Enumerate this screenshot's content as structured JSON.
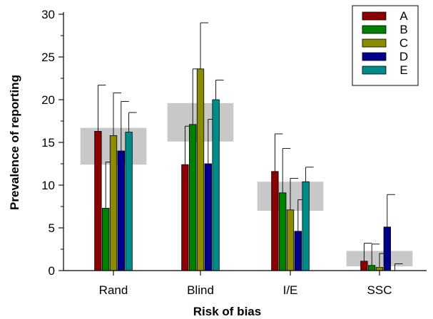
{
  "chart_data": {
    "type": "bar",
    "xlabel": "Risk of bias",
    "ylabel": "Prevalence of reporting",
    "categories": [
      "Rand",
      "Blind",
      "I/E",
      "SSC"
    ],
    "ylim": [
      0,
      30
    ],
    "yticks": [
      0,
      5,
      10,
      15,
      20,
      25,
      30
    ],
    "legend_position": "top-right",
    "series": [
      {
        "name": "A",
        "color": "#8b0000",
        "values": [
          16.3,
          12.4,
          11.6,
          1.1
        ],
        "errors": [
          5.4,
          4.5,
          4.4,
          2.1
        ]
      },
      {
        "name": "B",
        "color": "#008000",
        "values": [
          7.3,
          17.1,
          9.1,
          0.6
        ],
        "errors": [
          5.4,
          6.5,
          5.2,
          2.5
        ]
      },
      {
        "name": "C",
        "color": "#8b8b00",
        "values": [
          15.8,
          23.6,
          7.1,
          0.4
        ],
        "errors": [
          5.0,
          5.4,
          3.7,
          1.6
        ]
      },
      {
        "name": "D",
        "color": "#00008b",
        "values": [
          14.0,
          12.5,
          4.6,
          5.1
        ],
        "errors": [
          5.8,
          5.2,
          3.7,
          3.8
        ]
      },
      {
        "name": "E",
        "color": "#008b8b",
        "values": [
          16.2,
          20.0,
          10.4,
          0.0
        ],
        "errors": [
          2.3,
          2.3,
          1.7,
          0.8
        ]
      }
    ],
    "band_ranges": [
      {
        "category": "Rand",
        "low": 12.4,
        "high": 16.7
      },
      {
        "category": "Blind",
        "low": 15.1,
        "high": 19.6
      },
      {
        "category": "I/E",
        "low": 7.0,
        "high": 10.4
      },
      {
        "category": "SSC",
        "low": 0.5,
        "high": 2.3
      }
    ],
    "band_color": "#c8c8c8"
  }
}
